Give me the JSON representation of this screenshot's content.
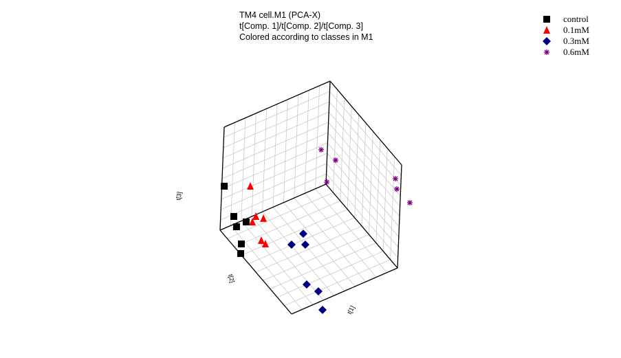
{
  "chart_data": {
    "type": "scatter3d",
    "title": [
      "TM4 cell.M1 (PCA-X)",
      "t[Comp. 1]/t[Comp. 2]/t[Comp. 3]",
      "Colored according to classes in M1"
    ],
    "xlabel": "t[1]",
    "ylabel": "t[2]",
    "zlabel": "t[3]",
    "xlim": [
      -6,
      6
    ],
    "ylim": [
      -6,
      6
    ],
    "zlim": [
      -6,
      6
    ],
    "grid": true,
    "legend": "top-right",
    "series": [
      {
        "name": "control",
        "color": "#000000",
        "marker": "square",
        "x": [
          -6,
          -6,
          -5.15,
          -5.08,
          -3.07,
          -2.1
        ],
        "y": [
          5.72,
          4.48,
          3.64,
          4.78,
          5.59,
          6.32
        ],
        "z": [
          -1.0,
          -5.08,
          -5.4,
          -5.4,
          -5.4,
          -5.4
        ]
      },
      {
        "name": "0.1mM",
        "color": "#ff0000",
        "marker": "triangle",
        "x": [
          -4.99,
          -4.75,
          -4.2,
          -4.86,
          -2.52,
          -1.98
        ],
        "y": [
          3.44,
          2.83,
          2.35,
          3.13,
          3.7,
          3.6
        ],
        "z": [
          -1.2,
          -4.8,
          -4.8,
          -5.4,
          -5.4,
          -5.4
        ]
      },
      {
        "name": "0.3mM",
        "color": "#000080",
        "marker": "diamond",
        "x": [
          -1.33,
          -0.72,
          -0.1,
          4.13,
          5.38,
          7.5
        ],
        "y": [
          -0.25,
          1.49,
          0.35,
          3.05,
          2.57,
          3.53
        ],
        "z": [
          -5.4,
          -5.4,
          -5.4,
          -5.4,
          -5.4,
          -5.4
        ]
      },
      {
        "name": "0.6mM",
        "color": "#800080",
        "marker": "asterisk",
        "x": [
          -5.76,
          -4.61,
          -5.88,
          5.1,
          5.39,
          7.56
        ],
        "y": [
          -5.11,
          -6,
          -6,
          -6,
          -6,
          -6
        ],
        "z": [
          -1.4,
          -2.08,
          -5.66,
          3.66,
          2.7,
          2.87
        ]
      }
    ]
  }
}
